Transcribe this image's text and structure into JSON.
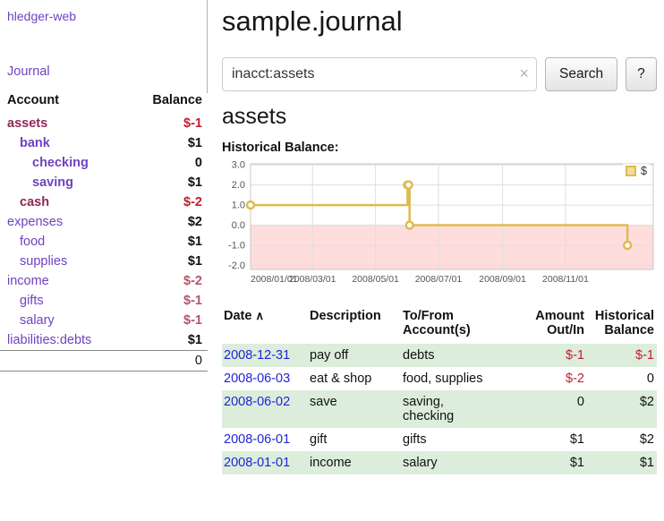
{
  "sidebar": {
    "brand": "hledger-web",
    "nav_journal": "Journal",
    "table": {
      "account_header": "Account",
      "balance_header": "Balance",
      "rows": [
        {
          "name": "assets",
          "balance": "$-1"
        },
        {
          "name": "bank",
          "balance": "$1"
        },
        {
          "name": "checking",
          "balance": "0"
        },
        {
          "name": "saving",
          "balance": "$1"
        },
        {
          "name": "cash",
          "balance": "$-2"
        },
        {
          "name": "expenses",
          "balance": "$2"
        },
        {
          "name": "food",
          "balance": "$1"
        },
        {
          "name": "supplies",
          "balance": "$1"
        },
        {
          "name": "income",
          "balance": "$-2"
        },
        {
          "name": "gifts",
          "balance": "$-1"
        },
        {
          "name": "salary",
          "balance": "$-1"
        },
        {
          "name": "liabilities:debts",
          "balance": "$1"
        }
      ],
      "total": "0"
    }
  },
  "main": {
    "title": "sample.journal",
    "search": {
      "value": "inacct:assets",
      "clear_icon": "×",
      "button_label": "Search",
      "help_label": "?"
    },
    "account_heading": "assets",
    "chart_label": "Historical Balance:",
    "register": {
      "headers": {
        "date": "Date",
        "description": "Description",
        "tofrom": "To/From\nAccount(s)",
        "amount": "Amount\nOut/In",
        "balance": "Historical\nBalance"
      },
      "sort_icon": "∧",
      "rows": [
        {
          "date": "2008-12-31",
          "description": "pay off",
          "accounts": "debts",
          "amount": "$-1",
          "balance": "$-1"
        },
        {
          "date": "2008-06-03",
          "description": "eat & shop",
          "accounts": "food, supplies",
          "amount": "$-2",
          "balance": "0"
        },
        {
          "date": "2008-06-02",
          "description": "save",
          "accounts": "saving,\nchecking",
          "amount": "0",
          "balance": "$2"
        },
        {
          "date": "2008-06-01",
          "description": "gift",
          "accounts": "gifts",
          "amount": "$1",
          "balance": "$2"
        },
        {
          "date": "2008-01-01",
          "description": "income",
          "accounts": "salary",
          "amount": "$1",
          "balance": "$1"
        }
      ]
    }
  },
  "chart_data": {
    "type": "line",
    "step": true,
    "title": "Historical Balance:",
    "legend_position": "top-right",
    "series": [
      {
        "name": "$",
        "color": "#dfbb4f",
        "fill_light": "#f2dc9a",
        "points": [
          [
            "2008-01-01",
            1
          ],
          [
            "2008-06-01",
            2
          ],
          [
            "2008-06-02",
            2
          ],
          [
            "2008-06-03",
            0
          ],
          [
            "2008-12-31",
            -1
          ]
        ]
      }
    ],
    "ylim": [
      -2.2,
      3.05
    ],
    "yticks": [
      3,
      2,
      1,
      0,
      -1,
      -2
    ],
    "xlim": [
      "2008-01-01",
      "2009-01-25"
    ],
    "xtick_dates": [
      "2008-01-01",
      "2008-03-01",
      "2008-05-01",
      "2008-07-01",
      "2008-09-01",
      "2008-11-01"
    ],
    "xtick_labels": [
      "2008/01/01",
      "2008/03/01",
      "2008/05/01",
      "2008/07/01",
      "2008/09/01",
      "2008/11/01"
    ],
    "negative_region_color": "#ffdddd",
    "grid": true
  },
  "colors": {
    "purple": "#6f42c1",
    "maroon": "#8f2a56",
    "negative_red": "#c21d2e",
    "muted_red": "#b5566a",
    "link_blue": "#2323d6",
    "row_green": "#dceddc",
    "series_gold": "#dfbb4f",
    "negative_area_pink": "#ffdddd"
  }
}
